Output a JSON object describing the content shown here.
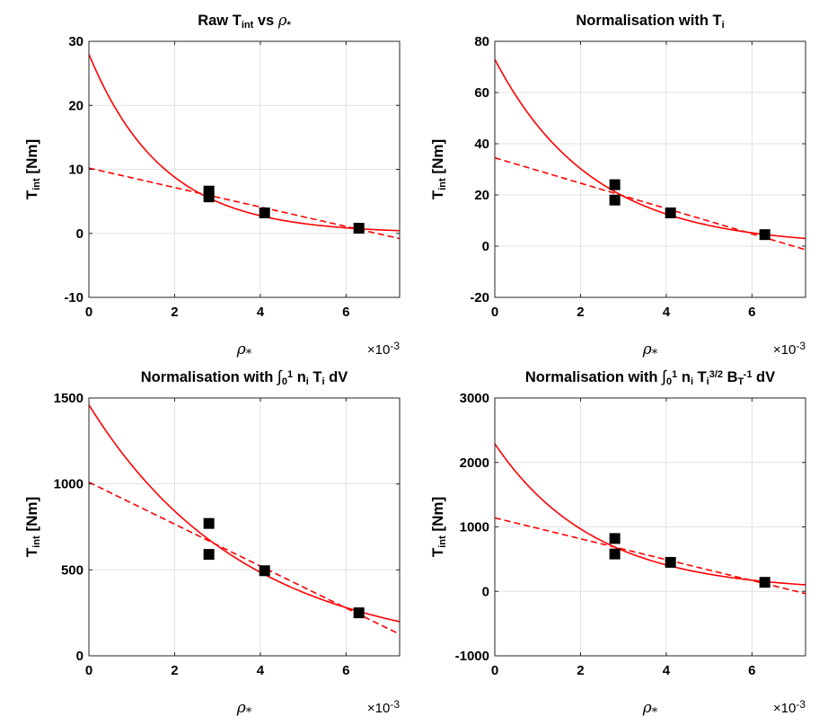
{
  "chart_data": [
    {
      "type": "scatter",
      "title": "Raw T_int vs ρ*",
      "title_parts": [
        [
          "Raw T",
          ""
        ],
        [
          "int",
          "sub"
        ],
        [
          " vs ",
          ""
        ],
        [
          "ρ",
          "it"
        ],
        [
          "*",
          "sub"
        ]
      ],
      "ylabel_parts": [
        [
          "T",
          ""
        ],
        [
          "int",
          "sub"
        ],
        [
          " [Nm]",
          ""
        ]
      ],
      "xlabel": "ρ*",
      "x_multiplier": "×10-3",
      "xlim": [
        0,
        7.25
      ],
      "ylim": [
        -10,
        30
      ],
      "xticks": [
        0,
        2,
        4,
        6
      ],
      "yticks": [
        -10,
        0,
        10,
        20,
        30
      ],
      "grid": true,
      "series": [],
      "points": {
        "x": [
          2.8,
          2.8,
          4.1,
          6.3
        ],
        "y": [
          6.6,
          5.7,
          3.2,
          0.8
        ]
      },
      "fit_exp": {
        "a": 28.0,
        "b": 0.58,
        "style": "solid",
        "color": "#ff0000"
      },
      "fit_lin": {
        "a": 10.2,
        "b": 1.52,
        "style": "dashed",
        "color": "#ff0000"
      }
    },
    {
      "type": "scatter",
      "title": "Normalisation with T_i",
      "title_parts": [
        [
          "Normalisation with T",
          ""
        ],
        [
          "i",
          "sub"
        ]
      ],
      "ylabel_parts": [
        [
          "T",
          ""
        ],
        [
          "int",
          "sub"
        ],
        [
          " [Nm]",
          ""
        ]
      ],
      "xlabel": "ρ*",
      "x_multiplier": "×10-3",
      "xlim": [
        0,
        7.25
      ],
      "ylim": [
        -20,
        80
      ],
      "xticks": [
        0,
        2,
        4,
        6
      ],
      "yticks": [
        -20,
        0,
        20,
        40,
        60,
        80
      ],
      "grid": true,
      "points": {
        "x": [
          2.8,
          2.8,
          4.1,
          6.3
        ],
        "y": [
          24.0,
          18.0,
          13.0,
          4.5
        ]
      },
      "fit_exp": {
        "a": 73.0,
        "b": 0.44,
        "style": "solid",
        "color": "#ff0000"
      },
      "fit_lin": {
        "a": 34.5,
        "b": 4.95,
        "style": "dashed",
        "color": "#ff0000"
      }
    },
    {
      "type": "scatter",
      "title": "Normalisation with ∫01 ni Ti dV",
      "title_parts": [
        [
          "Normalisation with ",
          ""
        ],
        [
          "∫",
          "int"
        ],
        [
          "0",
          "sub"
        ],
        [
          "1",
          "sup"
        ],
        [
          " n",
          ""
        ],
        [
          "i",
          "sub"
        ],
        [
          " T",
          ""
        ],
        [
          "i",
          "sub"
        ],
        [
          " dV",
          ""
        ]
      ],
      "ylabel_parts": [
        [
          "T",
          ""
        ],
        [
          "int",
          "sub"
        ],
        [
          " [Nm]",
          ""
        ]
      ],
      "xlabel": "ρ*",
      "x_multiplier": "×10-3",
      "xlim": [
        0,
        7.25
      ],
      "ylim": [
        0,
        1500
      ],
      "xticks": [
        0,
        2,
        4,
        6
      ],
      "yticks": [
        0,
        500,
        1000,
        1500
      ],
      "grid": true,
      "points": {
        "x": [
          2.8,
          2.8,
          4.1,
          6.3
        ],
        "y": [
          770,
          590,
          495,
          250
        ]
      },
      "fit_exp": {
        "a": 1460,
        "b": 0.275,
        "style": "solid",
        "color": "#ff0000"
      },
      "fit_lin": {
        "a": 1010,
        "b": 122,
        "style": "dashed",
        "color": "#ff0000"
      }
    },
    {
      "type": "scatter",
      "title": "Normalisation with ∫01 ni Ti3/2 BT-1 dV",
      "title_parts": [
        [
          "Normalisation with ",
          ""
        ],
        [
          "∫",
          "int"
        ],
        [
          "0",
          "sub"
        ],
        [
          "1",
          "sup"
        ],
        [
          " n",
          ""
        ],
        [
          "i",
          "sub"
        ],
        [
          " T",
          ""
        ],
        [
          "i",
          "sub"
        ],
        [
          "3/2",
          "sup"
        ],
        [
          " B",
          ""
        ],
        [
          "T",
          "sub"
        ],
        [
          "-1",
          "sup"
        ],
        [
          " dV",
          ""
        ]
      ],
      "ylabel_parts": [
        [
          "T",
          ""
        ],
        [
          "int",
          "sub"
        ],
        [
          " [Nm]",
          ""
        ]
      ],
      "xlabel": "ρ*",
      "x_multiplier": "×10-3",
      "xlim": [
        0,
        7.25
      ],
      "ylim": [
        -1000,
        3000
      ],
      "xticks": [
        0,
        2,
        4,
        6
      ],
      "yticks": [
        -1000,
        0,
        1000,
        2000,
        3000
      ],
      "grid": true,
      "points": {
        "x": [
          2.8,
          2.8,
          4.1,
          6.3
        ],
        "y": [
          820,
          580,
          450,
          140
        ]
      },
      "fit_exp": {
        "a": 2290,
        "b": 0.43,
        "style": "solid",
        "color": "#ff0000"
      },
      "fit_lin": {
        "a": 1140,
        "b": 162,
        "style": "dashed",
        "color": "#ff0000"
      }
    }
  ]
}
